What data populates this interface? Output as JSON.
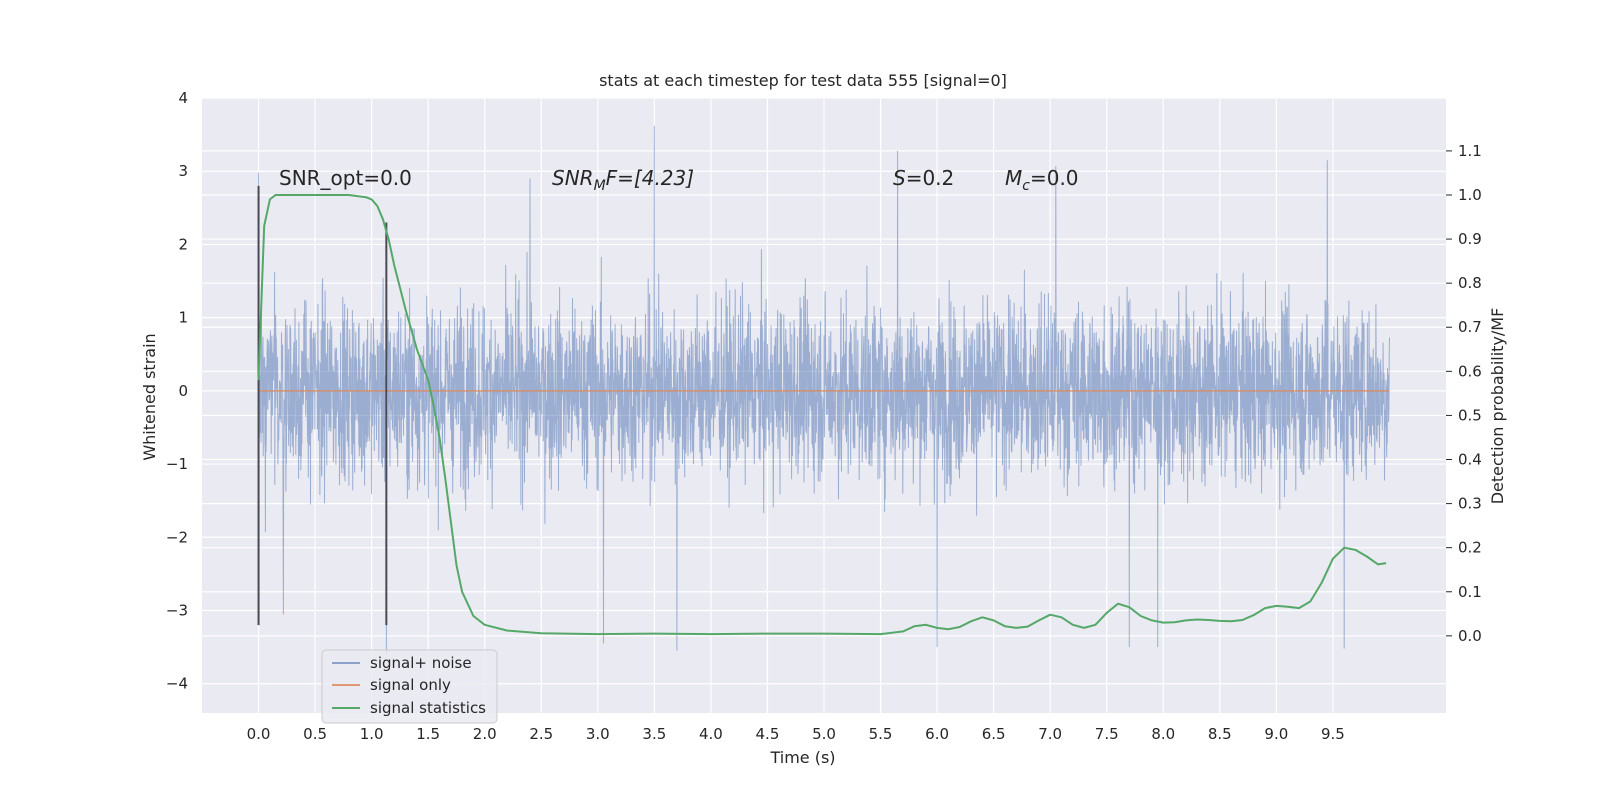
{
  "chart_data": {
    "type": "line",
    "title": "stats at each timestep for test data 555 [signal=0]",
    "xlabel": "Time (s)",
    "ylabel_left": "Whitened strain",
    "ylabel_right": "Detection probability/MF",
    "xlim": [
      -0.5,
      10.5
    ],
    "ylim_left": [
      -4.4,
      4.0
    ],
    "ylim_right": [
      -0.175,
      1.22
    ],
    "x_ticks": [
      "0.0",
      "0.5",
      "1.0",
      "1.5",
      "2.0",
      "2.5",
      "3.0",
      "3.5",
      "4.0",
      "4.5",
      "5.0",
      "5.5",
      "6.0",
      "6.5",
      "7.0",
      "7.5",
      "8.0",
      "8.5",
      "9.0",
      "9.5"
    ],
    "y_left_ticks": [
      "4",
      "3",
      "2",
      "1",
      "0",
      "−1",
      "−2",
      "−3",
      "−4"
    ],
    "y_right_ticks": [
      "1.1",
      "1.0",
      "0.9",
      "0.8",
      "0.7",
      "0.6",
      "0.5",
      "0.4",
      "0.3",
      "0.2",
      "0.1",
      "0.0"
    ],
    "grid": true,
    "legend_position": "bottom-left",
    "colors": {
      "background": "#eaeaf2",
      "grid": "#ffffff",
      "signal_noise": "#4c72b0",
      "signal_only": "#dd8452",
      "signal_statistics": "#55a868",
      "markers": "#4a4a55"
    },
    "annotations": {
      "snr_opt": "SNR_opt=0.0",
      "snr_mf_base": "SNR",
      "snr_mf_sub": "M",
      "snr_mf_tail": "F=[4.23]",
      "s_var": "S",
      "s_tail": "=0.2",
      "mc_var": "M",
      "mc_sub": "c",
      "mc_tail": "=0.0"
    },
    "vertical_markers": [
      {
        "x": 0.0,
        "ymin": -3.2,
        "ymax": 2.8
      },
      {
        "x": 1.13,
        "ymin": -3.2,
        "ymax": 2.3
      }
    ],
    "series": [
      {
        "name": "signal+ noise",
        "axis": "left",
        "x_range": [
          0.0,
          10.0
        ],
        "samples": 4096,
        "typical_amplitude": 1.0,
        "peak_values": [
          {
            "x": 0.0,
            "y": 2.98
          },
          {
            "x": 0.22,
            "y": -3.05
          },
          {
            "x": 1.13,
            "y": -3.6
          },
          {
            "x": 2.4,
            "y": 2.9
          },
          {
            "x": 3.05,
            "y": -3.45
          },
          {
            "x": 3.5,
            "y": 3.62
          },
          {
            "x": 3.7,
            "y": -3.55
          },
          {
            "x": 5.65,
            "y": 3.28
          },
          {
            "x": 6.0,
            "y": -3.5
          },
          {
            "x": 7.05,
            "y": 3.07
          },
          {
            "x": 7.7,
            "y": -3.5
          },
          {
            "x": 7.95,
            "y": -3.5
          },
          {
            "x": 9.45,
            "y": 3.15
          },
          {
            "x": 9.6,
            "y": -3.52
          }
        ]
      },
      {
        "name": "signal only",
        "axis": "left",
        "x": [
          0.0,
          10.0
        ],
        "y": [
          0.0,
          0.0
        ]
      },
      {
        "name": "signal statistics",
        "axis": "right",
        "x": [
          0.0,
          0.05,
          0.1,
          0.15,
          0.2,
          0.3,
          0.5,
          0.8,
          0.95,
          1.0,
          1.05,
          1.1,
          1.15,
          1.2,
          1.3,
          1.4,
          1.5,
          1.55,
          1.6,
          1.65,
          1.7,
          1.75,
          1.8,
          1.9,
          2.0,
          2.2,
          2.5,
          3.0,
          3.5,
          4.0,
          4.5,
          5.0,
          5.5,
          5.7,
          5.8,
          5.9,
          6.0,
          6.1,
          6.2,
          6.3,
          6.4,
          6.5,
          6.6,
          6.7,
          6.8,
          6.9,
          7.0,
          7.1,
          7.2,
          7.3,
          7.4,
          7.5,
          7.6,
          7.7,
          7.8,
          7.9,
          8.0,
          8.1,
          8.2,
          8.3,
          8.4,
          8.5,
          8.6,
          8.7,
          8.8,
          8.9,
          9.0,
          9.1,
          9.2,
          9.3,
          9.4,
          9.5,
          9.6,
          9.7,
          9.8,
          9.9,
          9.97
        ],
        "y": [
          0.58,
          0.93,
          0.99,
          1.0,
          1.0,
          1.0,
          1.0,
          1.0,
          0.995,
          0.99,
          0.975,
          0.945,
          0.9,
          0.84,
          0.74,
          0.65,
          0.58,
          0.52,
          0.45,
          0.36,
          0.26,
          0.16,
          0.1,
          0.045,
          0.025,
          0.012,
          0.006,
          0.004,
          0.005,
          0.004,
          0.005,
          0.005,
          0.004,
          0.01,
          0.022,
          0.025,
          0.018,
          0.015,
          0.02,
          0.033,
          0.042,
          0.035,
          0.022,
          0.018,
          0.021,
          0.035,
          0.048,
          0.042,
          0.025,
          0.018,
          0.025,
          0.052,
          0.073,
          0.065,
          0.045,
          0.035,
          0.03,
          0.031,
          0.035,
          0.037,
          0.036,
          0.034,
          0.033,
          0.036,
          0.047,
          0.063,
          0.068,
          0.066,
          0.063,
          0.078,
          0.12,
          0.175,
          0.2,
          0.195,
          0.18,
          0.162,
          0.165
        ]
      }
    ]
  }
}
